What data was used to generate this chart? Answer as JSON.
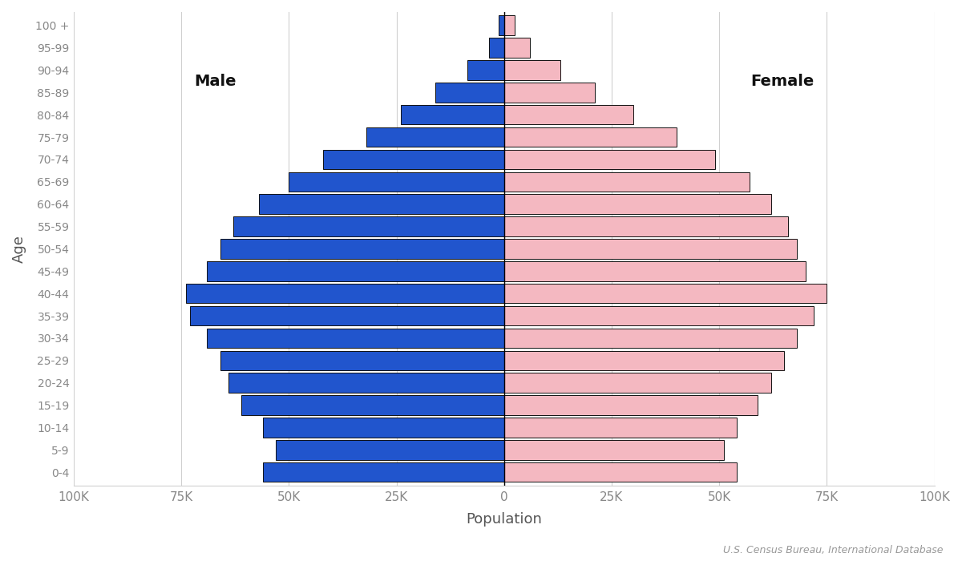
{
  "age_groups": [
    "0-4",
    "5-9",
    "10-14",
    "15-19",
    "20-24",
    "25-29",
    "30-34",
    "35-39",
    "40-44",
    "45-49",
    "50-54",
    "55-59",
    "60-64",
    "65-69",
    "70-74",
    "75-79",
    "80-84",
    "85-89",
    "90-94",
    "95-99",
    "100 +"
  ],
  "male": [
    56000,
    53000,
    56000,
    61000,
    64000,
    66000,
    69000,
    73000,
    74000,
    69000,
    66000,
    63000,
    57000,
    50000,
    42000,
    32000,
    24000,
    16000,
    8500,
    3500,
    1200
  ],
  "female": [
    54000,
    51000,
    54000,
    59000,
    62000,
    65000,
    68000,
    72000,
    75000,
    70000,
    68000,
    66000,
    62000,
    57000,
    49000,
    40000,
    30000,
    21000,
    13000,
    6000,
    2500
  ],
  "male_color": "#2155cd",
  "female_color": "#f4b8c1",
  "bar_edge_color": "#111111",
  "bar_edge_width": 0.7,
  "xlabel": "Population",
  "ylabel": "Age",
  "xlim": 100000,
  "male_label": "Male",
  "female_label": "Female",
  "source_text": "U.S. Census Bureau, International Database",
  "background_color": "#ffffff",
  "grid_color": "#d0d0d0",
  "tick_label_color": "#888888",
  "axis_label_color": "#555555",
  "male_female_label_color": "#111111",
  "source_color": "#999999"
}
